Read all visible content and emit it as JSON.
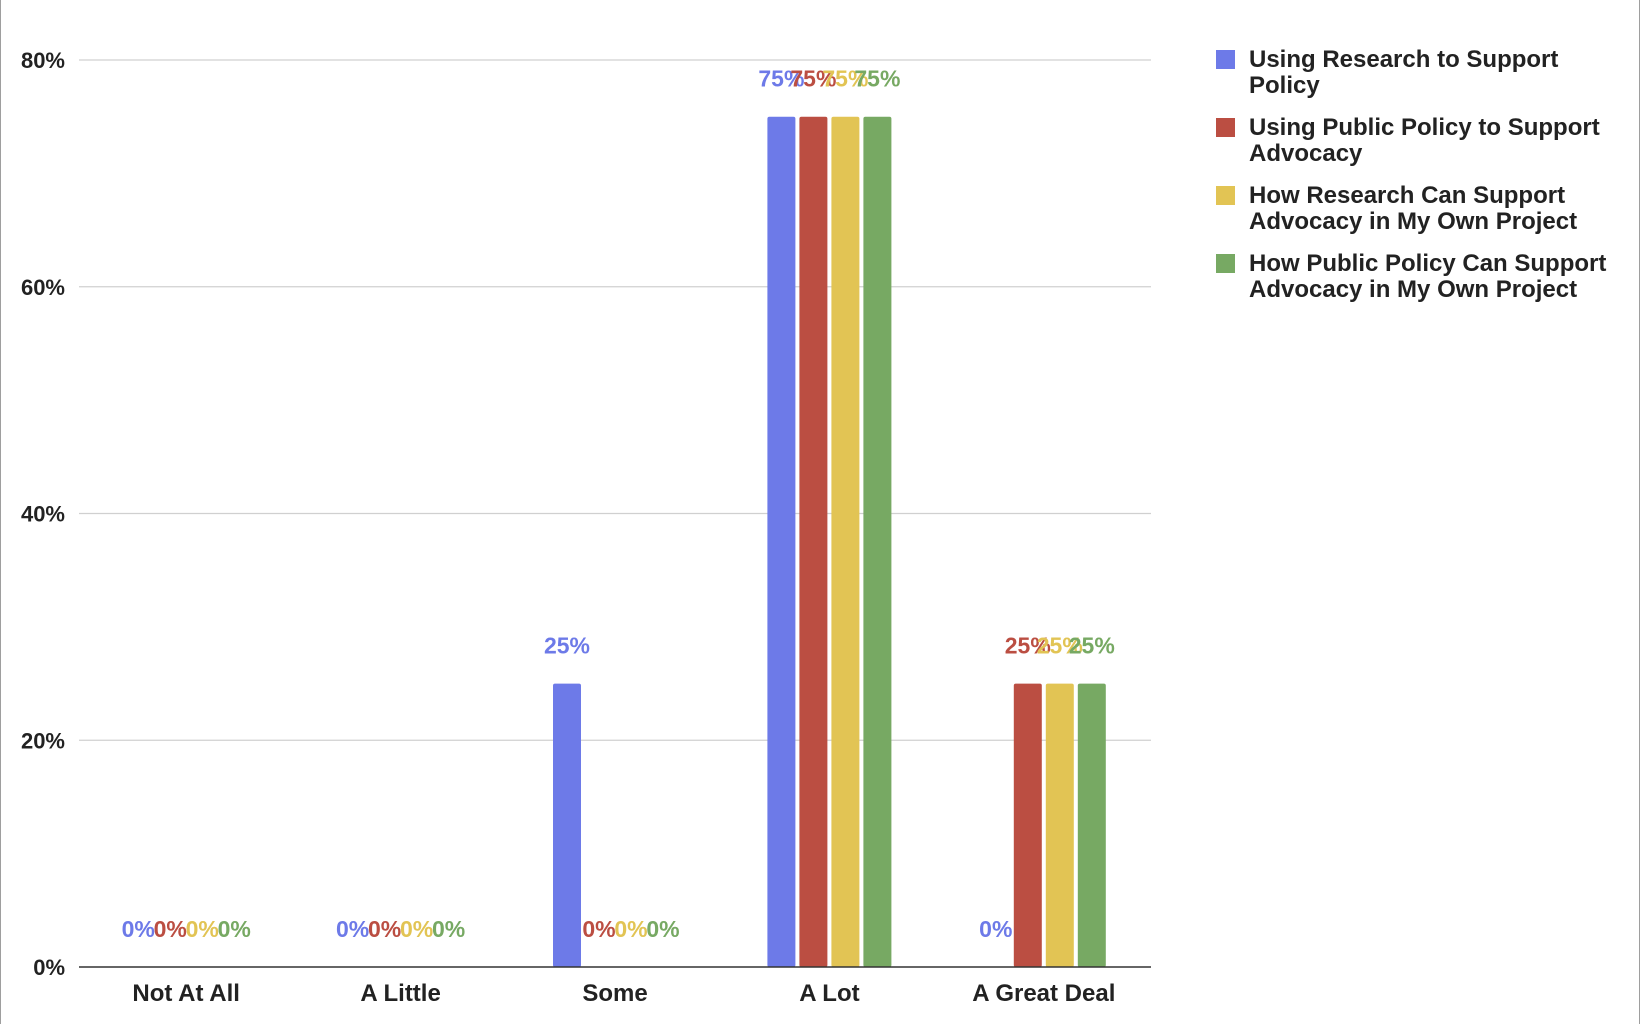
{
  "chart_data": {
    "type": "bar",
    "categories": [
      "Not At All",
      "A Little",
      "Some",
      "A Lot",
      "A Great Deal"
    ],
    "ylim": [
      0,
      80
    ],
    "yticks": [
      0,
      20,
      40,
      60,
      80
    ],
    "ytick_labels": [
      "0%",
      "20%",
      "40%",
      "60%",
      "80%"
    ],
    "grid": true,
    "legend_position": "right",
    "series": [
      {
        "name": "Using Research to Support Policy",
        "legend_lines": [
          "Using Research to Support",
          "Policy"
        ],
        "color": "#6d7ae8",
        "values": [
          0,
          0,
          25,
          75,
          0
        ],
        "labels": [
          "0%",
          "0%",
          "25%",
          "75%",
          "0%"
        ]
      },
      {
        "name": "Using Public Policy to Support Advocacy",
        "legend_lines": [
          "Using Public Policy to Support",
          "Advocacy"
        ],
        "color": "#bb4e42",
        "values": [
          0,
          0,
          0,
          75,
          25
        ],
        "labels": [
          "0%",
          "0%",
          "0%",
          "75%",
          "25%"
        ]
      },
      {
        "name": "How Research Can Support Advocacy in My Own Project",
        "legend_lines": [
          "How Research Can Support",
          "Advocacy in My Own Project"
        ],
        "color": "#e2c454",
        "values": [
          0,
          0,
          0,
          75,
          25
        ],
        "labels": [
          "0%",
          "0%",
          "0%",
          "75%",
          "25%"
        ]
      },
      {
        "name": "How Public Policy Can Support Advocacy in My Own Project",
        "legend_lines": [
          "How Public Policy Can Support",
          "Advocacy in My Own Project"
        ],
        "color": "#77a963",
        "values": [
          0,
          0,
          0,
          75,
          25
        ],
        "labels": [
          "0%",
          "0%",
          "0%",
          "75%",
          "25%"
        ]
      }
    ]
  }
}
